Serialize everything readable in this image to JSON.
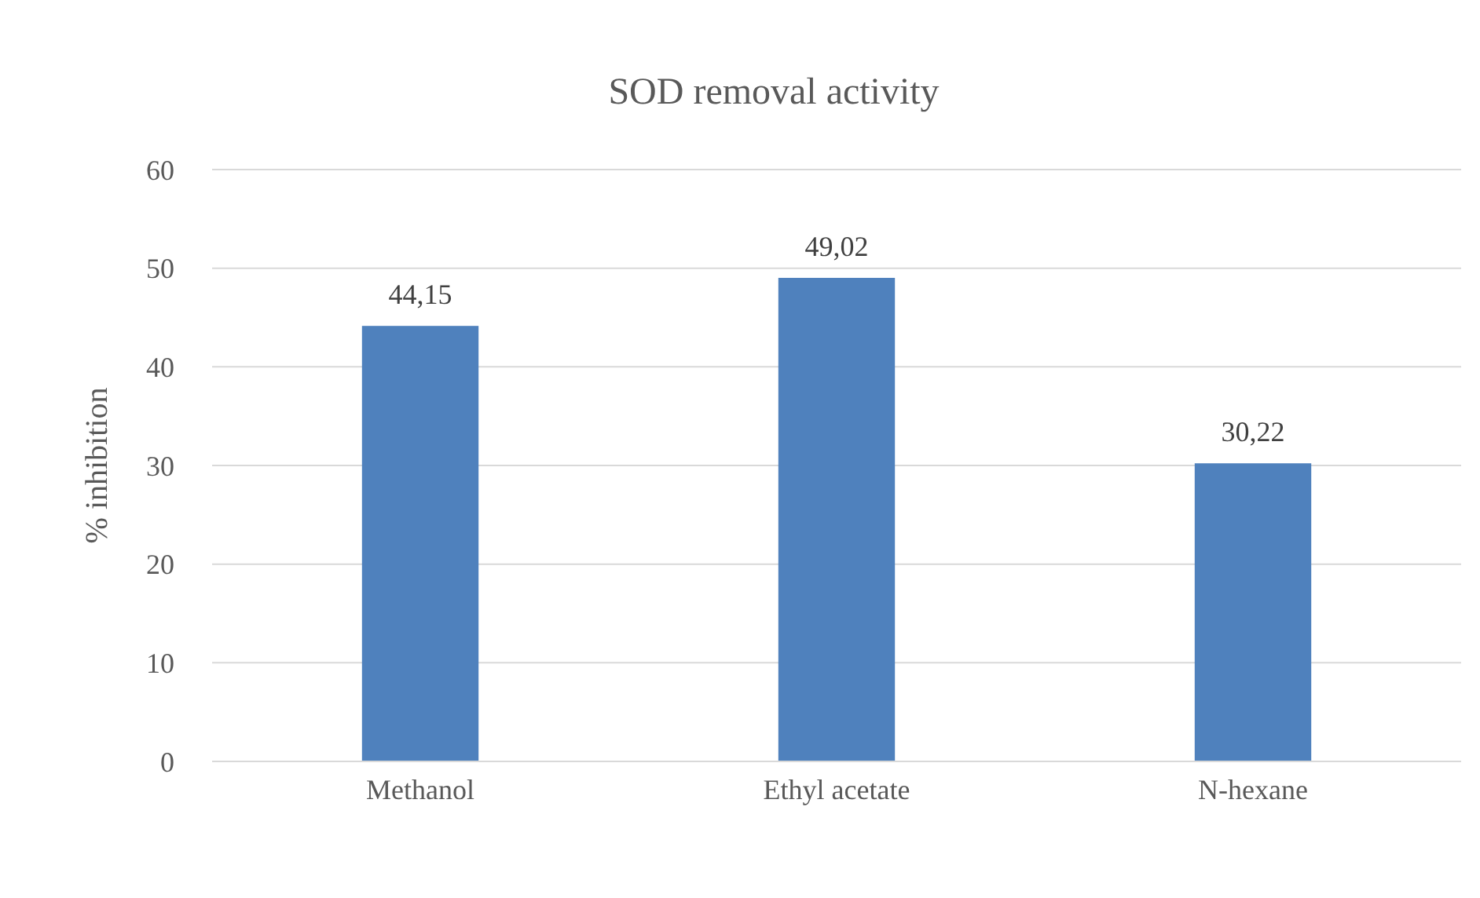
{
  "chart_data": {
    "type": "bar",
    "title": "SOD removal activity",
    "ylabel": "% inhibition",
    "categories": [
      "Methanol",
      "Ethyl acetate",
      "N-hexane"
    ],
    "values": [
      44.15,
      49.02,
      30.22
    ],
    "value_labels": [
      "44,15",
      "49,02",
      "30,22"
    ],
    "color": "#4f81bd",
    "ylim": [
      0,
      60
    ],
    "yticks": [
      0,
      10,
      20,
      30,
      40,
      50,
      60
    ],
    "grid": "y"
  }
}
